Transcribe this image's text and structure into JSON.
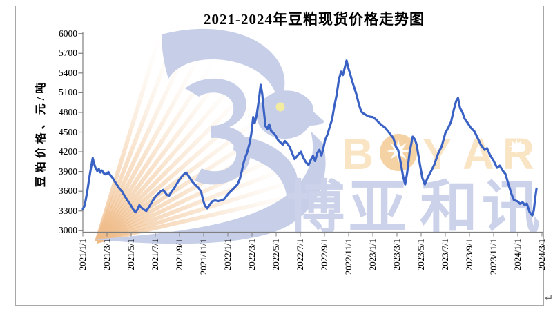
{
  "title": "2021-2024年豆粕现货价格走势图",
  "page": {
    "return_mark": "↵"
  },
  "watermark": {
    "brand": "BOYAR",
    "brand_letters": [
      "B",
      "O",
      "Y",
      "A",
      "R"
    ],
    "brand_cn": "博亚和讯",
    "bird_icon": "swallow-bird-logo",
    "colors": {
      "bird": "#c7cfe8",
      "stripes": "#efba86",
      "brand_text": "#f9e4c4",
      "brand_cn_text": "#cbd2ea",
      "sun": "#f5d2a4",
      "eye": "#f3eca0"
    }
  },
  "axis_color": "#7f7f7f",
  "chart_data": {
    "type": "line",
    "title": "2021-2024年豆粕现货价格走势图",
    "ylabel": "豆粕价格、元/吨",
    "xlabel": "",
    "ylim": [
      3000,
      6000
    ],
    "y_tick_step": 300,
    "y_ticks": [
      6000,
      5700,
      5400,
      5100,
      4800,
      4500,
      4200,
      3900,
      3600,
      3300,
      3000
    ],
    "x_ticks": [
      "2021/1/1",
      "2021/3/1",
      "2021/5/1",
      "2021/7/1",
      "2021/9/1",
      "2021/11/1",
      "2022/1/1",
      "2022/3/1",
      "2022/5/1",
      "2022/7/1",
      "2022/9/1",
      "2022/11/1",
      "2023/1/1",
      "2023/3/1",
      "2023/5/1",
      "2023/7/1",
      "2023/9/1",
      "2023/11/1",
      "2024/1/1",
      "2024/3/1"
    ],
    "x_unit": "months since 2021/1/1",
    "grid": false,
    "legend": false,
    "series": [
      {
        "name": "豆粕现货价格",
        "color": "#3a62c4",
        "points": [
          [
            0,
            3330
          ],
          [
            0.12,
            3370
          ],
          [
            0.25,
            3480
          ],
          [
            0.4,
            3640
          ],
          [
            0.55,
            3820
          ],
          [
            0.7,
            3990
          ],
          [
            0.82,
            4105
          ],
          [
            0.95,
            4010
          ],
          [
            1.05,
            3955
          ],
          [
            1.2,
            3905
          ],
          [
            1.32,
            3940
          ],
          [
            1.45,
            3885
          ],
          [
            1.58,
            3915
          ],
          [
            1.72,
            3875
          ],
          [
            1.85,
            3858
          ],
          [
            2,
            3870
          ],
          [
            2.12,
            3892
          ],
          [
            2.25,
            3850
          ],
          [
            2.45,
            3805
          ],
          [
            2.65,
            3745
          ],
          [
            2.85,
            3690
          ],
          [
            3.05,
            3635
          ],
          [
            3.25,
            3595
          ],
          [
            3.5,
            3515
          ],
          [
            3.75,
            3445
          ],
          [
            3.95,
            3395
          ],
          [
            4.15,
            3330
          ],
          [
            4.35,
            3280
          ],
          [
            4.52,
            3320
          ],
          [
            4.68,
            3390
          ],
          [
            4.85,
            3350
          ],
          [
            5.05,
            3320
          ],
          [
            5.25,
            3300
          ],
          [
            5.45,
            3355
          ],
          [
            5.65,
            3415
          ],
          [
            5.85,
            3475
          ],
          [
            6.05,
            3530
          ],
          [
            6.25,
            3560
          ],
          [
            6.45,
            3600
          ],
          [
            6.65,
            3620
          ],
          [
            6.8,
            3585
          ],
          [
            6.95,
            3545
          ],
          [
            7.15,
            3535
          ],
          [
            7.35,
            3595
          ],
          [
            7.55,
            3645
          ],
          [
            7.75,
            3705
          ],
          [
            7.95,
            3765
          ],
          [
            8.15,
            3815
          ],
          [
            8.35,
            3855
          ],
          [
            8.55,
            3882
          ],
          [
            8.72,
            3840
          ],
          [
            8.9,
            3790
          ],
          [
            9.1,
            3735
          ],
          [
            9.35,
            3690
          ],
          [
            9.6,
            3645
          ],
          [
            9.8,
            3585
          ],
          [
            9.95,
            3470
          ],
          [
            10.1,
            3380
          ],
          [
            10.3,
            3340
          ],
          [
            10.5,
            3395
          ],
          [
            10.7,
            3445
          ],
          [
            10.95,
            3460
          ],
          [
            11.2,
            3450
          ],
          [
            11.45,
            3460
          ],
          [
            11.7,
            3480
          ],
          [
            11.9,
            3530
          ],
          [
            12.1,
            3575
          ],
          [
            12.3,
            3610
          ],
          [
            12.55,
            3655
          ],
          [
            12.8,
            3705
          ],
          [
            13,
            3790
          ],
          [
            13.15,
            3900
          ],
          [
            13.3,
            4030
          ],
          [
            13.45,
            4120
          ],
          [
            13.6,
            4190
          ],
          [
            13.8,
            4330
          ],
          [
            13.95,
            4480
          ],
          [
            14.1,
            4730
          ],
          [
            14.22,
            4640
          ],
          [
            14.38,
            4750
          ],
          [
            14.55,
            4960
          ],
          [
            14.72,
            5220
          ],
          [
            14.85,
            5080
          ],
          [
            14.98,
            4820
          ],
          [
            15.12,
            4590
          ],
          [
            15.28,
            4550
          ],
          [
            15.42,
            4620
          ],
          [
            15.58,
            4520
          ],
          [
            15.75,
            4490
          ],
          [
            15.95,
            4450
          ],
          [
            16.15,
            4380
          ],
          [
            16.35,
            4345
          ],
          [
            16.55,
            4310
          ],
          [
            16.72,
            4365
          ],
          [
            16.9,
            4330
          ],
          [
            17.1,
            4280
          ],
          [
            17.3,
            4190
          ],
          [
            17.52,
            4090
          ],
          [
            17.72,
            4130
          ],
          [
            17.9,
            4175
          ],
          [
            18.05,
            4200
          ],
          [
            18.25,
            4110
          ],
          [
            18.45,
            4045
          ],
          [
            18.68,
            4000
          ],
          [
            18.88,
            4085
          ],
          [
            19.05,
            4140
          ],
          [
            19.22,
            4060
          ],
          [
            19.4,
            4180
          ],
          [
            19.58,
            4230
          ],
          [
            19.75,
            4145
          ],
          [
            19.9,
            4250
          ],
          [
            20.05,
            4380
          ],
          [
            20.25,
            4465
          ],
          [
            20.45,
            4590
          ],
          [
            20.62,
            4690
          ],
          [
            20.8,
            4880
          ],
          [
            21,
            5060
          ],
          [
            21.2,
            5310
          ],
          [
            21.38,
            5420
          ],
          [
            21.52,
            5370
          ],
          [
            21.68,
            5480
          ],
          [
            21.83,
            5590
          ],
          [
            21.98,
            5470
          ],
          [
            22.12,
            5390
          ],
          [
            22.3,
            5270
          ],
          [
            22.48,
            5170
          ],
          [
            22.65,
            5070
          ],
          [
            22.85,
            4920
          ],
          [
            23.05,
            4810
          ],
          [
            23.25,
            4780
          ],
          [
            23.5,
            4755
          ],
          [
            23.75,
            4735
          ],
          [
            24,
            4730
          ],
          [
            24.25,
            4695
          ],
          [
            24.5,
            4645
          ],
          [
            24.75,
            4605
          ],
          [
            25,
            4570
          ],
          [
            25.25,
            4515
          ],
          [
            25.5,
            4455
          ],
          [
            25.7,
            4410
          ],
          [
            25.9,
            4280
          ],
          [
            26.1,
            4225
          ],
          [
            26.3,
            4040
          ],
          [
            26.5,
            3830
          ],
          [
            26.68,
            3705
          ],
          [
            26.85,
            3890
          ],
          [
            27.05,
            4200
          ],
          [
            27.3,
            4432
          ],
          [
            27.48,
            4390
          ],
          [
            27.62,
            4310
          ],
          [
            27.78,
            4140
          ],
          [
            27.92,
            3985
          ],
          [
            28.1,
            3800
          ],
          [
            28.3,
            3705
          ],
          [
            28.55,
            3810
          ],
          [
            28.85,
            3915
          ],
          [
            29.1,
            4010
          ],
          [
            29.4,
            4170
          ],
          [
            29.7,
            4285
          ],
          [
            30,
            4484
          ],
          [
            30.25,
            4570
          ],
          [
            30.48,
            4660
          ],
          [
            30.7,
            4840
          ],
          [
            30.9,
            4975
          ],
          [
            31.05,
            5020
          ],
          [
            31.22,
            4865
          ],
          [
            31.4,
            4810
          ],
          [
            31.6,
            4705
          ],
          [
            31.85,
            4640
          ],
          [
            32.1,
            4568
          ],
          [
            32.4,
            4515
          ],
          [
            32.68,
            4410
          ],
          [
            32.95,
            4305
          ],
          [
            33.25,
            4230
          ],
          [
            33.45,
            4255
          ],
          [
            33.7,
            4150
          ],
          [
            34,
            4063
          ],
          [
            34.28,
            3958
          ],
          [
            34.5,
            3990
          ],
          [
            34.75,
            3915
          ],
          [
            34.97,
            3863
          ],
          [
            35.2,
            3725
          ],
          [
            35.45,
            3570
          ],
          [
            35.68,
            3465
          ],
          [
            36,
            3445
          ],
          [
            36.18,
            3410
          ],
          [
            36.4,
            3432
          ],
          [
            36.57,
            3390
          ],
          [
            36.75,
            3412
          ],
          [
            36.97,
            3285
          ],
          [
            37.2,
            3232
          ],
          [
            37.32,
            3305
          ],
          [
            37.45,
            3510
          ],
          [
            37.55,
            3640
          ]
        ]
      }
    ]
  }
}
